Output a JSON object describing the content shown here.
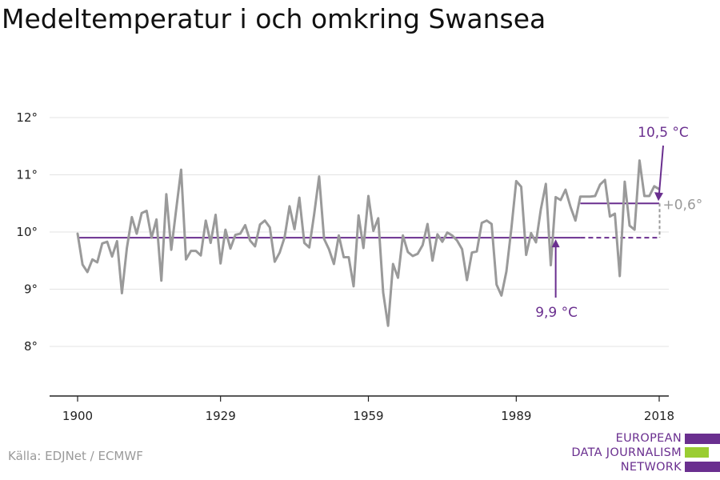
{
  "title": "Medeltemperatur i och omkring Swansea",
  "source": "Källa: EDJNet / ECMWF",
  "logo": {
    "lines": [
      "EUROPEAN",
      "DATA JOURNALISM",
      "NETWORK"
    ],
    "colors": [
      "#6a2f8f",
      "#9acd32",
      "#6a2f8f"
    ]
  },
  "colors": {
    "series": "#9a9a9a",
    "mean": "#6a2f8f",
    "grid": "#e3e3e3",
    "axis": "#222222",
    "diff": "#999999"
  },
  "chart_data": {
    "type": "line",
    "title": "Medeltemperatur i och omkring Swansea",
    "xlabel": "",
    "ylabel": "",
    "xlim": [
      1900,
      2018
    ],
    "ylim": [
      7,
      12.5
    ],
    "x_ticks": [
      1900,
      1929,
      1959,
      1989,
      2018
    ],
    "x_tick_labels": [
      "1900",
      "1929",
      "1959",
      "1989",
      "2018"
    ],
    "y_ticks": [
      8,
      9,
      10,
      11,
      12
    ],
    "y_tick_labels": [
      "8°",
      "9°",
      "10°",
      "11°",
      "12°"
    ],
    "grid": true,
    "legend": "none",
    "series": [
      {
        "x": [
          1900,
          1901,
          1902,
          1903,
          1904,
          1905,
          1906,
          1907,
          1908,
          1909,
          1910,
          1911,
          1912,
          1913,
          1914,
          1915,
          1916,
          1917,
          1918,
          1919,
          1920,
          1921,
          1922,
          1923,
          1924,
          1925,
          1926,
          1927,
          1928,
          1929,
          1930,
          1931,
          1932,
          1933,
          1934,
          1935,
          1936,
          1937,
          1938,
          1939,
          1940,
          1941,
          1942,
          1943,
          1944,
          1945,
          1946,
          1947,
          1948,
          1949,
          1950,
          1951,
          1952,
          1953,
          1954,
          1955,
          1956,
          1957,
          1958,
          1959,
          1960,
          1961,
          1962,
          1963,
          1964,
          1965,
          1966,
          1967,
          1968,
          1969,
          1970,
          1971,
          1972,
          1973,
          1974,
          1975,
          1976,
          1977,
          1978,
          1979,
          1980,
          1981,
          1982,
          1983,
          1984,
          1985,
          1986,
          1987,
          1988,
          1989,
          1990,
          1991,
          1992,
          1993,
          1994,
          1995,
          1996,
          1997,
          1998,
          1999,
          2000,
          2001,
          2002,
          2003,
          2004,
          2005,
          2006,
          2007,
          2008,
          2009,
          2010,
          2011,
          2012,
          2013,
          2014,
          2015,
          2016,
          2017,
          2018
        ],
        "values": [
          9.97,
          9.43,
          9.3,
          9.52,
          9.47,
          9.8,
          9.83,
          9.57,
          9.84,
          8.93,
          9.72,
          10.26,
          9.97,
          10.33,
          10.37,
          9.9,
          10.22,
          9.15,
          10.66,
          9.69,
          10.39,
          11.09,
          9.52,
          9.67,
          9.67,
          9.59,
          10.2,
          9.81,
          10.3,
          9.45,
          10.04,
          9.71,
          9.95,
          9.97,
          10.12,
          9.85,
          9.75,
          10.13,
          10.2,
          10.08,
          9.48,
          9.64,
          9.91,
          10.45,
          10.05,
          10.6,
          9.81,
          9.73,
          10.31,
          10.97,
          9.88,
          9.7,
          9.44,
          9.94,
          9.56,
          9.56,
          9.05,
          10.29,
          9.72,
          10.63,
          10.02,
          10.24,
          8.94,
          8.36,
          9.44,
          9.2,
          9.94,
          9.65,
          9.58,
          9.62,
          9.77,
          10.14,
          9.5,
          9.96,
          9.83,
          9.99,
          9.94,
          9.85,
          9.7,
          9.16,
          9.64,
          9.66,
          10.16,
          10.2,
          10.14,
          9.08,
          8.89,
          9.31,
          10.06,
          10.89,
          10.79,
          9.6,
          9.98,
          9.82,
          10.4,
          10.84,
          9.42,
          10.61,
          10.56,
          10.74,
          10.44,
          10.2,
          10.62,
          10.62,
          10.62,
          10.63,
          10.83,
          10.91,
          10.27,
          10.32,
          9.23,
          10.88,
          10.11,
          10.04,
          11.25,
          10.63,
          10.63,
          10.8,
          10.75
        ]
      }
    ],
    "reference_lines": [
      {
        "label": "9,9 °C",
        "value": 9.9,
        "from": 1900,
        "to": 2018
      },
      {
        "label": "10,5 °C",
        "value": 10.5,
        "from": 2002,
        "to": 2018
      }
    ],
    "difference_label": "+0,6°"
  }
}
